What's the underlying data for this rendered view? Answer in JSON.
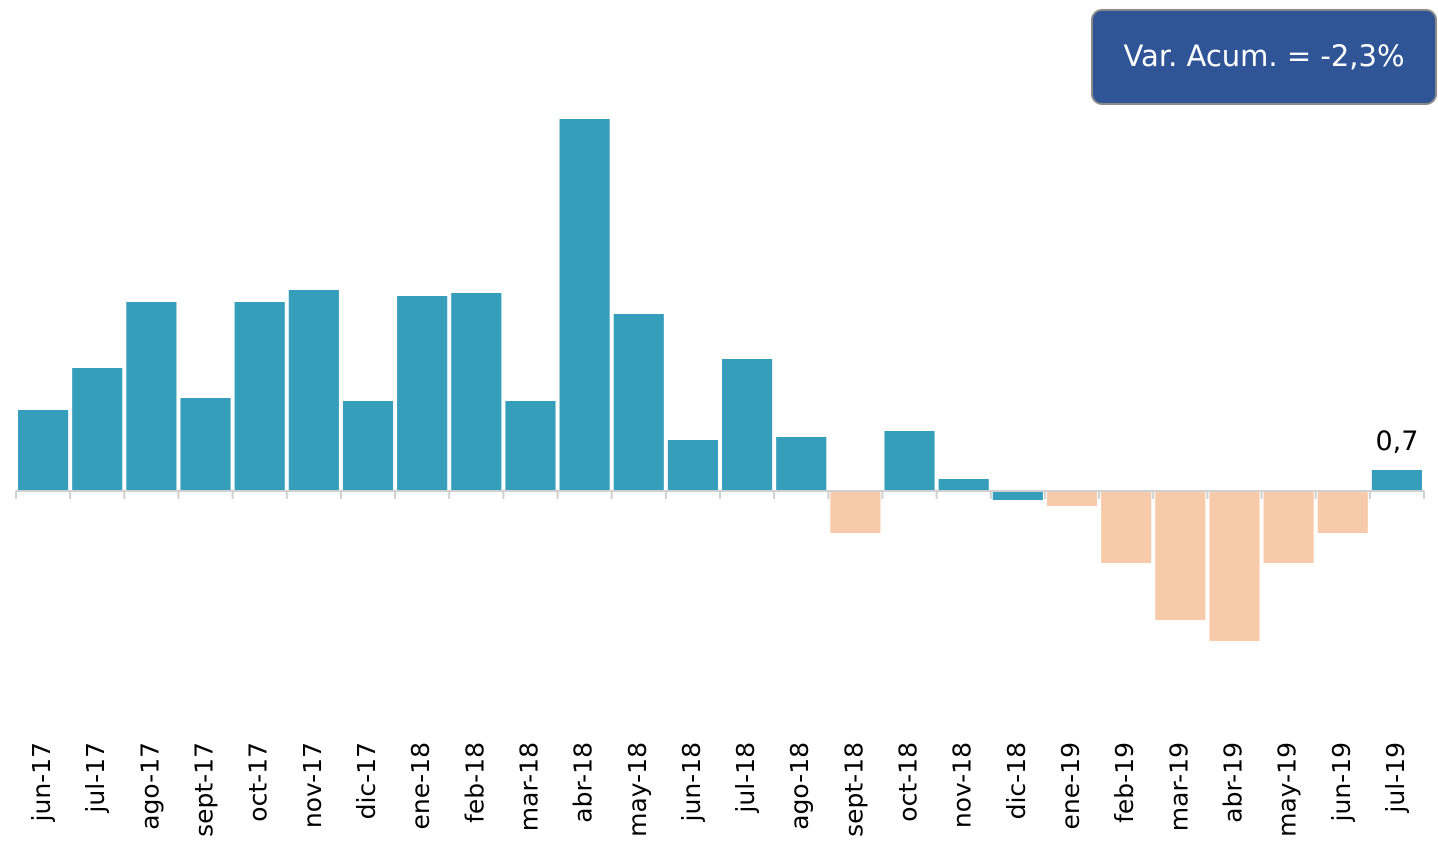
{
  "chart_data": {
    "type": "bar",
    "annotation": "Var. Acum. = -2,3%",
    "categories": [
      "jun-17",
      "jul-17",
      "ago-17",
      "sept-17",
      "oct-17",
      "nov-17",
      "dic-17",
      "ene-18",
      "feb-18",
      "mar-18",
      "abr-18",
      "may-18",
      "jun-18",
      "jul-18",
      "ago-18",
      "sept-18",
      "oct-18",
      "nov-18",
      "dic-18",
      "ene-19",
      "feb-19",
      "mar-19",
      "abr-19",
      "may-19",
      "jun-19",
      "jul-19"
    ],
    "values": [
      2.7,
      4.1,
      6.3,
      3.1,
      6.3,
      6.7,
      3.0,
      6.5,
      6.6,
      3.0,
      12.4,
      5.9,
      1.7,
      4.4,
      1.8,
      -1.4,
      2.0,
      0.4,
      -0.3,
      -0.5,
      -2.4,
      -4.3,
      -5.0,
      -2.4,
      -1.4,
      0.7
    ],
    "value_labels": [
      null,
      null,
      null,
      null,
      null,
      null,
      null,
      null,
      null,
      null,
      null,
      null,
      null,
      null,
      null,
      null,
      null,
      null,
      null,
      null,
      null,
      null,
      null,
      null,
      null,
      "0,7"
    ],
    "colors": [
      "#359ebb",
      "#359ebb",
      "#359ebb",
      "#359ebb",
      "#359ebb",
      "#359ebb",
      "#359ebb",
      "#359ebb",
      "#359ebb",
      "#359ebb",
      "#359ebb",
      "#359ebb",
      "#359ebb",
      "#359ebb",
      "#359ebb",
      "#f7cbaa",
      "#359ebb",
      "#359ebb",
      "#359ebb",
      "#f7cbaa",
      "#f7cbaa",
      "#f7cbaa",
      "#f7cbaa",
      "#f7cbaa",
      "#f7cbaa",
      "#359ebb"
    ]
  }
}
